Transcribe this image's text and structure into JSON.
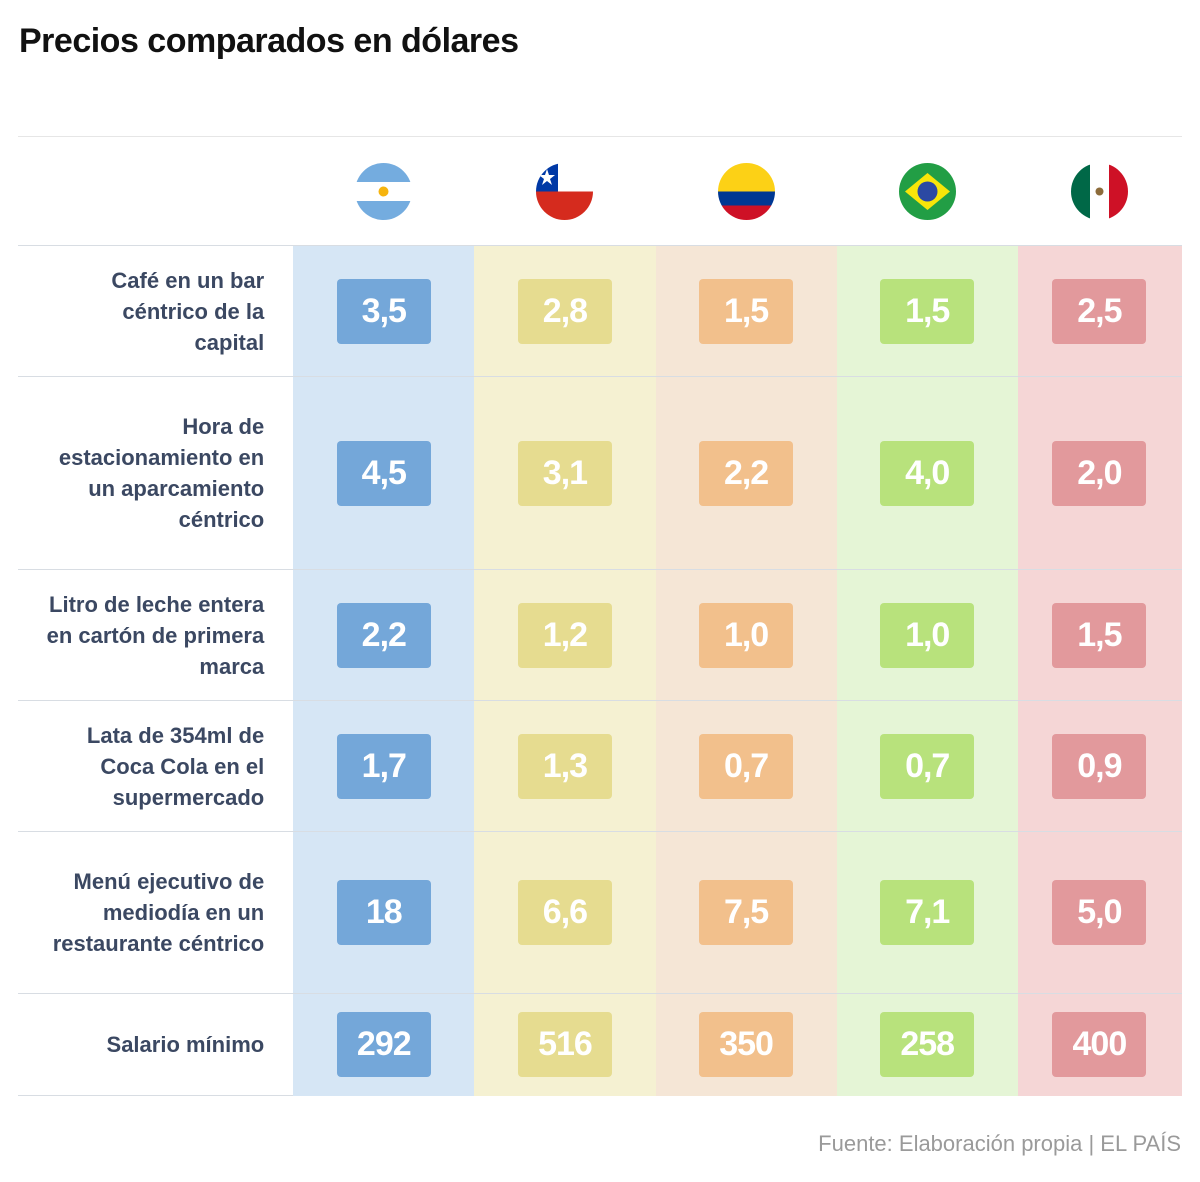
{
  "title": "Precios comparados en dólares",
  "countries": [
    {
      "flag_icon": "argentina-flag-icon",
      "bg": "#d6e6f5",
      "badge": "#74a7d9"
    },
    {
      "flag_icon": "chile-flag-icon",
      "bg": "#f5f1d2",
      "badge": "#e6dc90"
    },
    {
      "flag_icon": "colombia-flag-icon",
      "bg": "#f5e6d6",
      "badge": "#f2c08c"
    },
    {
      "flag_icon": "brazil-flag-icon",
      "bg": "#e5f5d6",
      "badge": "#b8e27c"
    },
    {
      "flag_icon": "mexico-flag-icon",
      "bg": "#f5d6d6",
      "badge": "#e2999c"
    }
  ],
  "chart_data": {
    "type": "table",
    "rows": [
      {
        "label": "Café en un bar céntrico de la capital",
        "values": [
          "3,5",
          "2,8",
          "1,5",
          "1,5",
          "2,5"
        ]
      },
      {
        "label": "Hora de estacionamiento en un aparcamiento céntrico",
        "values": [
          "4,5",
          "3,1",
          "2,2",
          "4,0",
          "2,0"
        ]
      },
      {
        "label": "Litro de leche entera en cartón de primera marca",
        "values": [
          "2,2",
          "1,2",
          "1,0",
          "1,0",
          "1,5"
        ]
      },
      {
        "label": "Lata de 354ml de Coca Cola en el supermercado",
        "values": [
          "1,7",
          "1,3",
          "0,7",
          "0,7",
          "0,9"
        ]
      },
      {
        "label": "Menú ejecutivo de mediodía en un restaurante céntrico",
        "values": [
          "18",
          "6,6",
          "7,5",
          "7,1",
          "5,0"
        ]
      },
      {
        "label": "Salario mínimo",
        "values": [
          "292",
          "516",
          "350",
          "258",
          "400"
        ]
      }
    ]
  },
  "source": "Fuente: Elaboración propia | EL PAÍS"
}
